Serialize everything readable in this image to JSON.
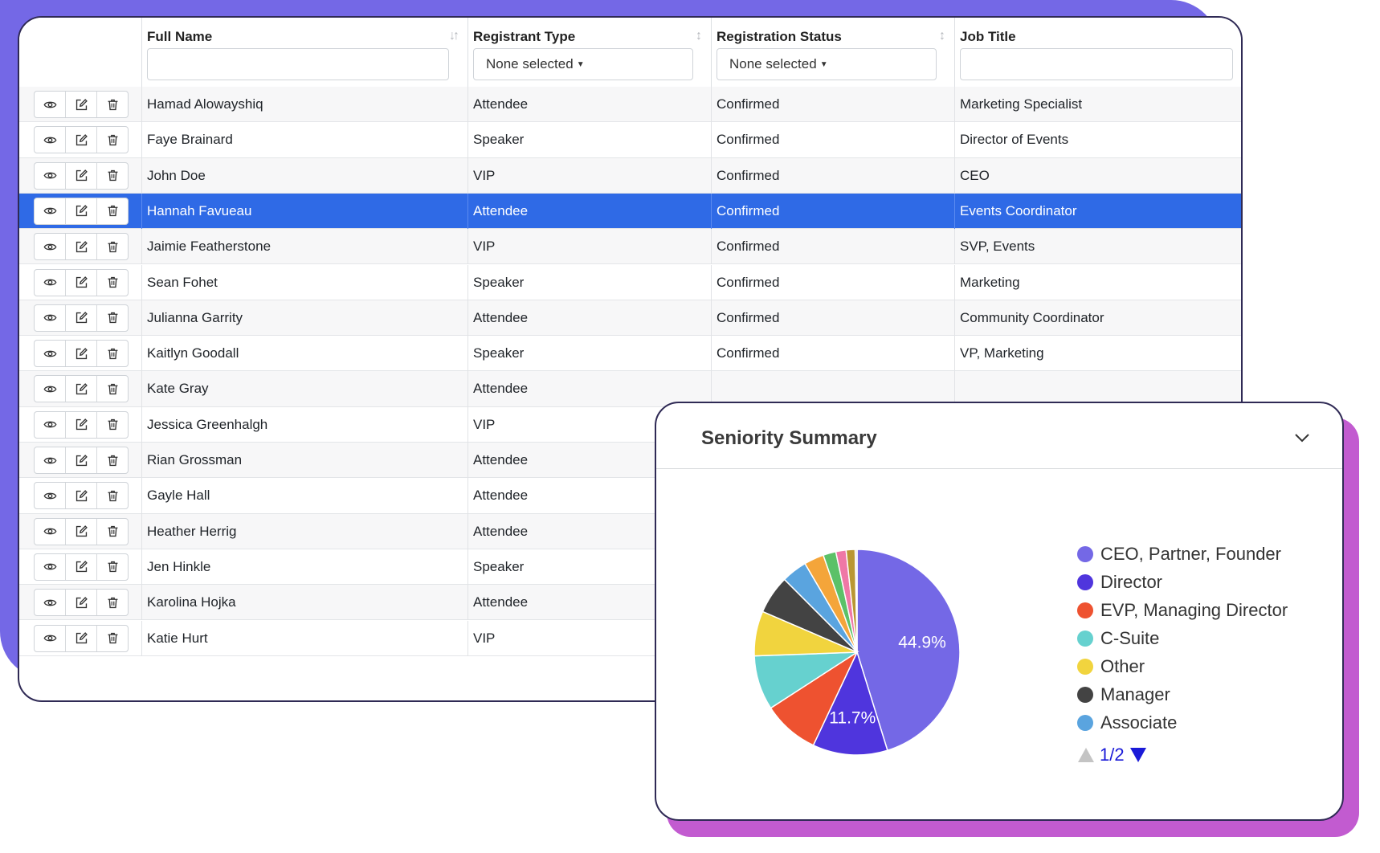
{
  "table": {
    "columns": [
      {
        "label": "Full Name",
        "filter_value": "",
        "filter_type": "text",
        "sort": true
      },
      {
        "label": "Registrant Type",
        "filter_value": "None selected",
        "filter_type": "select",
        "sort": true
      },
      {
        "label": "Registration Status",
        "filter_value": "None selected",
        "filter_type": "select",
        "sort": true
      },
      {
        "label": "Job Title",
        "filter_value": "",
        "filter_type": "text",
        "sort": false
      }
    ],
    "selected_row_index": 3,
    "selected_color": "#2f6ae6",
    "action_icons": [
      "eye-icon",
      "edit-icon",
      "trash-icon"
    ],
    "rows": [
      {
        "name": "Hamad Alowayshiq",
        "type": "Attendee",
        "status": "Confirmed",
        "title": "Marketing Specialist"
      },
      {
        "name": "Faye Brainard",
        "type": "Speaker",
        "status": "Confirmed",
        "title": "Director of Events"
      },
      {
        "name": "John Doe",
        "type": "VIP",
        "status": "Confirmed",
        "title": "CEO"
      },
      {
        "name": "Hannah Favueau",
        "type": "Attendee",
        "status": "Confirmed",
        "title": "Events Coordinator"
      },
      {
        "name": "Jaimie Featherstone",
        "type": "VIP",
        "status": "Confirmed",
        "title": "SVP, Events"
      },
      {
        "name": "Sean Fohet",
        "type": "Speaker",
        "status": "Confirmed",
        "title": "Marketing"
      },
      {
        "name": "Julianna Garrity",
        "type": "Attendee",
        "status": "Confirmed",
        "title": "Community Coordinator"
      },
      {
        "name": "Kaitlyn Goodall",
        "type": "Speaker",
        "status": "Confirmed",
        "title": "VP, Marketing"
      },
      {
        "name": "Kate Gray",
        "type": "Attendee",
        "status": "",
        "title": ""
      },
      {
        "name": "Jessica Greenhalgh",
        "type": "VIP",
        "status": "",
        "title": ""
      },
      {
        "name": "Rian Grossman",
        "type": "Attendee",
        "status": "",
        "title": ""
      },
      {
        "name": "Gayle Hall",
        "type": "Attendee",
        "status": "",
        "title": ""
      },
      {
        "name": "Heather Herrig",
        "type": "Attendee",
        "status": "",
        "title": ""
      },
      {
        "name": "Jen Hinkle",
        "type": "Speaker",
        "status": "",
        "title": ""
      },
      {
        "name": "Karolina Hojka",
        "type": "Attendee",
        "status": "",
        "title": ""
      },
      {
        "name": "Katie Hurt",
        "type": "VIP",
        "status": "",
        "title": ""
      }
    ]
  },
  "summary": {
    "title": "Seniority Summary",
    "collapse_icon": "chevron-down-icon",
    "pager": {
      "label": "1/2",
      "prev_icon": "triangle-up-icon",
      "next_icon": "triangle-down-icon"
    }
  },
  "chart_data": {
    "type": "pie",
    "title": "Seniority Summary",
    "legend_position": "right",
    "labels": [
      "CEO, Partner, Founder",
      "Director",
      "EVP, Managing Director",
      "C-Suite",
      "Other",
      "Manager",
      "Associate",
      "",
      "",
      "",
      "",
      ""
    ],
    "values": [
      44.9,
      11.7,
      8.8,
      8.5,
      7.0,
      6.0,
      4.0,
      3.1,
      2.0,
      1.6,
      1.4,
      0.3
    ],
    "value_labels": [
      "44.9%",
      "11.7%",
      "",
      "",
      "",
      "",
      "",
      "",
      "",
      "",
      "",
      ""
    ],
    "legend_count": 7,
    "colors": [
      "#7468e6",
      "#4f35dd",
      "#ee5230",
      "#66d1cf",
      "#f1d43e",
      "#434343",
      "#5aa4df",
      "#f4a53a",
      "#5cc168",
      "#ef78a6",
      "#b99733",
      "#d7d7d7"
    ]
  }
}
